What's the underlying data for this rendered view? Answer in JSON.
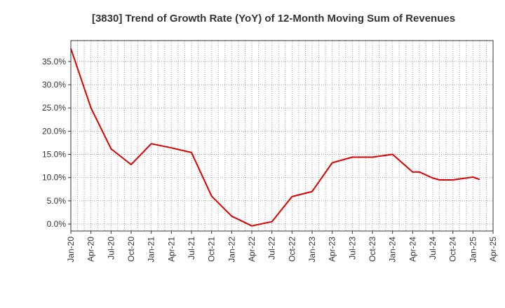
{
  "chart_data": {
    "type": "line",
    "title": "[3830]  Trend of Growth Rate (YoY) of 12-Month Moving Sum of Revenues",
    "xlabel": "",
    "ylabel": "",
    "x_tick_labels": [
      "Jan-20",
      "Apr-20",
      "Jul-20",
      "Oct-20",
      "Jan-21",
      "Apr-21",
      "Jul-21",
      "Oct-21",
      "Jan-22",
      "Apr-22",
      "Jul-22",
      "Oct-22",
      "Jan-23",
      "Apr-23",
      "Jul-23",
      "Oct-23",
      "Jan-24",
      "Apr-24",
      "Jul-24",
      "Oct-24",
      "Jan-25",
      "Apr-25"
    ],
    "y_ticks": [
      0,
      5,
      10,
      15,
      20,
      25,
      30,
      35
    ],
    "y_tick_labels": [
      "0.0%",
      "5.0%",
      "10.0%",
      "15.0%",
      "20.0%",
      "25.0%",
      "30.0%",
      "35.0%"
    ],
    "ylim": [
      -1.5,
      39.5
    ],
    "grid": true,
    "line_color": "#dd0000",
    "series": [
      {
        "x": [
          "Jan-20",
          "Apr-20",
          "Jul-20",
          "Oct-20",
          "Jan-21",
          "Apr-21",
          "Jul-21",
          "Oct-21",
          "Jan-22",
          "Apr-22",
          "Jul-22",
          "Oct-22",
          "Jan-23",
          "Apr-23",
          "Jul-23",
          "Oct-23",
          "Jan-24",
          "Apr-24",
          "May-24",
          "Jul-24",
          "Aug-24",
          "Oct-24",
          "Jan-25",
          "Feb-25"
        ],
        "values": [
          37.8,
          25.0,
          16.2,
          12.8,
          17.3,
          16.4,
          15.4,
          6.0,
          1.7,
          -0.4,
          0.5,
          5.9,
          7.0,
          13.2,
          14.4,
          14.4,
          15.0,
          11.2,
          11.2,
          9.9,
          9.5,
          9.5,
          10.1,
          9.6
        ]
      }
    ]
  }
}
